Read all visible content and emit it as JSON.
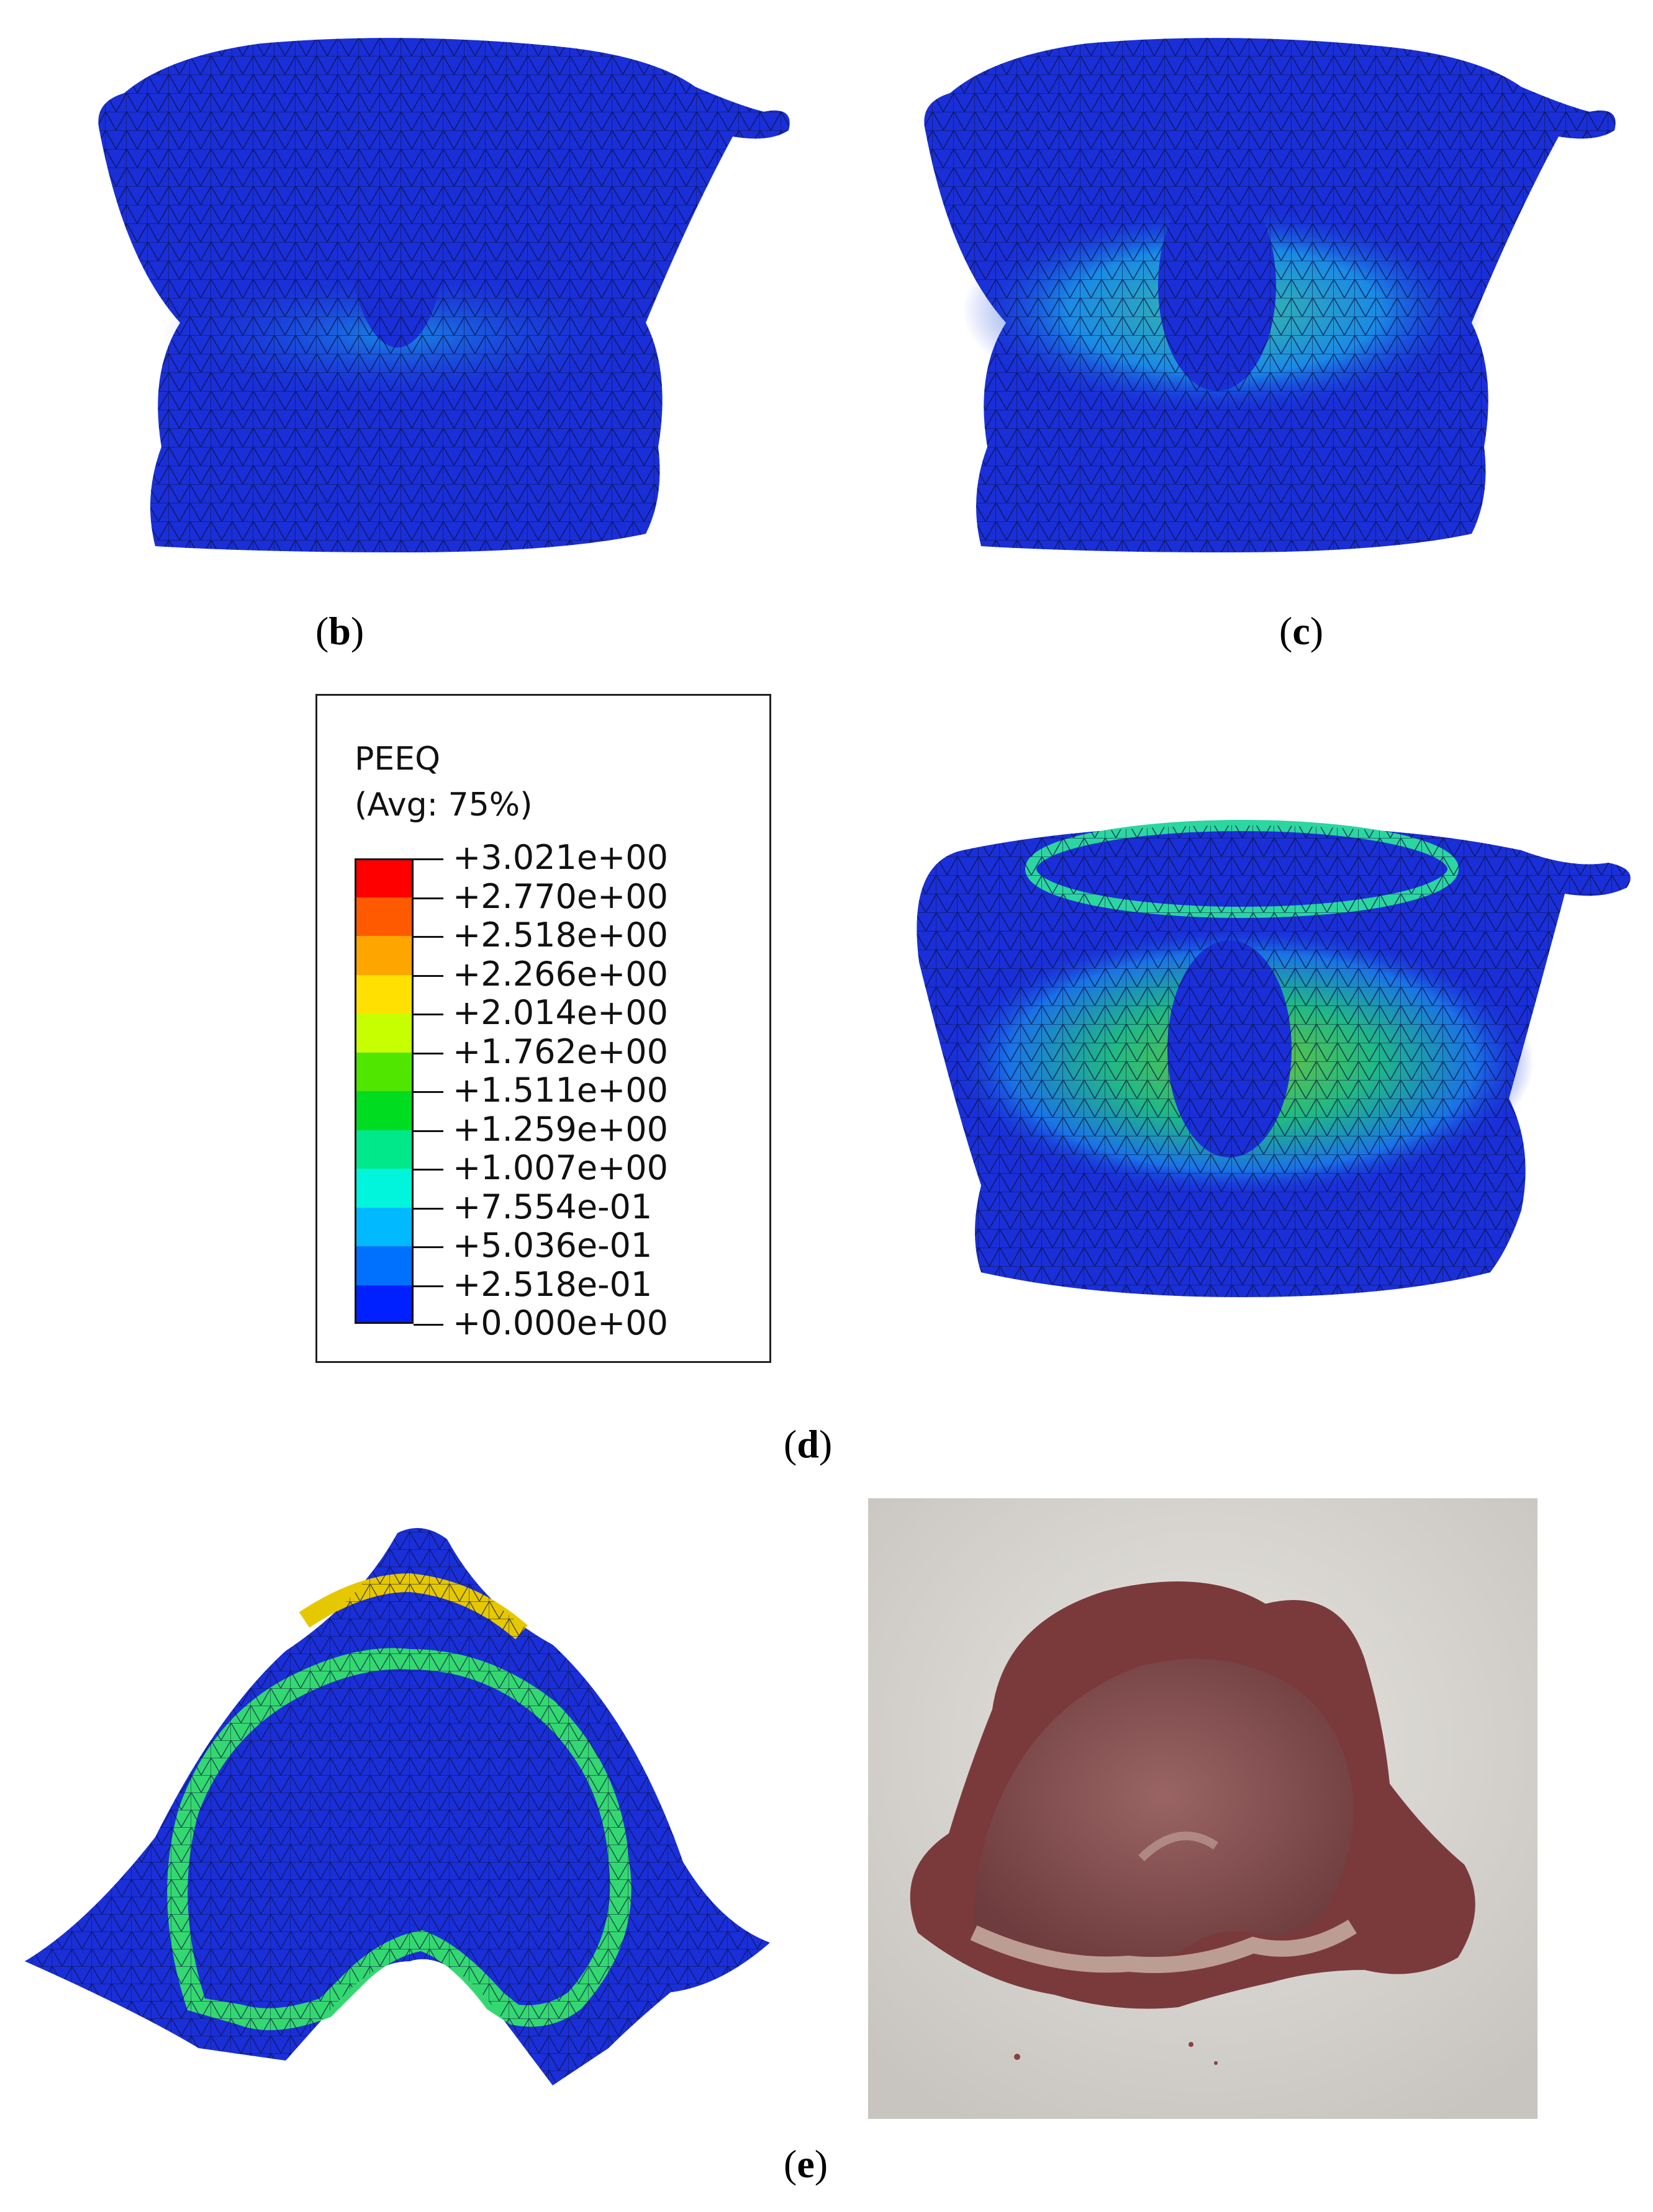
{
  "captions": {
    "b": "b",
    "c": "c",
    "d": "d",
    "e": "e"
  },
  "legend": {
    "variable": "PEEQ",
    "averaging": "(Avg: 75%)",
    "values": [
      "+3.021e+00",
      "+2.770e+00",
      "+2.518e+00",
      "+2.266e+00",
      "+2.014e+00",
      "+1.762e+00",
      "+1.511e+00",
      "+1.259e+00",
      "+1.007e+00",
      "+7.554e-01",
      "+5.036e-01",
      "+2.518e-01",
      "+0.000e+00"
    ],
    "colors": [
      "#ff0000",
      "#ff5a00",
      "#ffa500",
      "#ffe000",
      "#c8ff00",
      "#50e600",
      "#00dd20",
      "#00e88a",
      "#00f5dc",
      "#00b9ff",
      "#0070ff",
      "#0020ff"
    ]
  },
  "palette": {
    "mesh_base": "#1a2fd8",
    "mesh_line": "#0a0f40",
    "specimen_bone": "#8f5a5a",
    "specimen_background": "#dcdad6"
  }
}
